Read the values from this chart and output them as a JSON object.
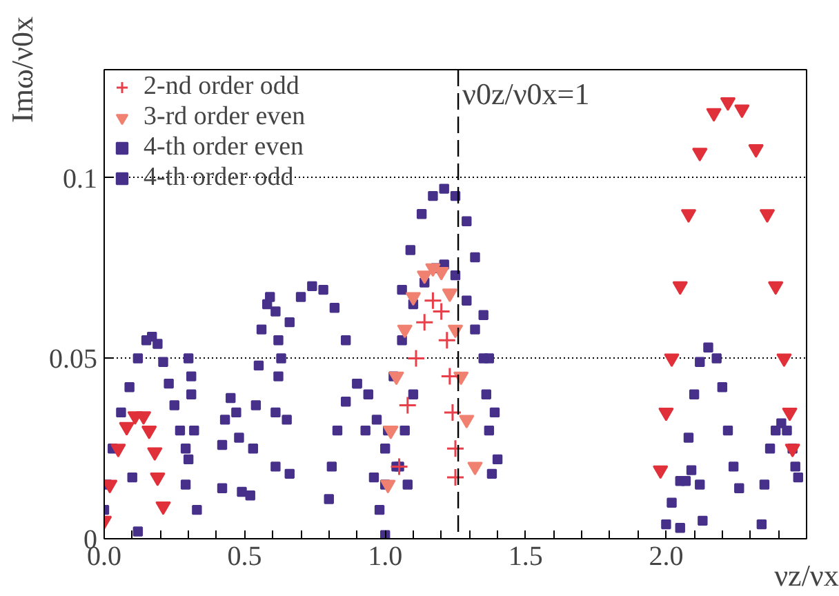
{
  "chart_data": {
    "type": "scatter",
    "xlabel": "νz/νx",
    "ylabel": "Imω/ν0x",
    "xlim": [
      0,
      2.5
    ],
    "ylim": [
      0,
      0.13
    ],
    "xticks": [
      {
        "value": 0,
        "label": "0.0"
      },
      {
        "value": 0.1,
        "label": null
      },
      {
        "value": 0.2,
        "label": null
      },
      {
        "value": 0.3,
        "label": null
      },
      {
        "value": 0.4,
        "label": null
      },
      {
        "value": 0.5,
        "label": "0.5"
      },
      {
        "value": 0.6,
        "label": null
      },
      {
        "value": 0.7,
        "label": null
      },
      {
        "value": 0.8,
        "label": null
      },
      {
        "value": 0.9,
        "label": null
      },
      {
        "value": 1,
        "label": "1.0"
      },
      {
        "value": 1.1,
        "label": null
      },
      {
        "value": 1.2,
        "label": null
      },
      {
        "value": 1.3,
        "label": null
      },
      {
        "value": 1.4,
        "label": null
      },
      {
        "value": 1.5,
        "label": "1.5"
      },
      {
        "value": 1.6,
        "label": null
      },
      {
        "value": 1.7,
        "label": null
      },
      {
        "value": 1.8,
        "label": null
      },
      {
        "value": 1.9,
        "label": null
      },
      {
        "value": 2,
        "label": "2.0"
      },
      {
        "value": 2.1,
        "label": null
      },
      {
        "value": 2.2,
        "label": null
      },
      {
        "value": 2.3,
        "label": null
      },
      {
        "value": 2.4,
        "label": null
      }
    ],
    "yticks": [
      0,
      0.05,
      0.1
    ],
    "grid": "y",
    "legend": "top left",
    "ref_lines": [
      {
        "axis": "x",
        "value": 1.26,
        "label": "ν0z/ν0x=1",
        "line_style": "dashed",
        "color": "#000000"
      }
    ],
    "series": [
      {
        "name": "2-nd order odd",
        "color": "#e8404a",
        "marker": "cross",
        "x": [
          1.05,
          1.08,
          1.11,
          1.14,
          1.17,
          1.2,
          1.22,
          1.23,
          1.24,
          1.25,
          1.25
        ],
        "values": [
          0.02,
          0.037,
          0.05,
          0.06,
          0.066,
          0.063,
          0.055,
          0.045,
          0.035,
          0.025,
          0.017
        ]
      },
      {
        "name": "3-rd order even",
        "color": "#f08070",
        "marker": "triangle",
        "x": [
          1.01,
          1.02,
          1.04,
          1.07,
          1.1,
          1.14,
          1.17,
          1.2,
          1.23,
          1.25,
          1.27,
          1.29,
          1.32
        ],
        "values": [
          0.015,
          0.03,
          0.045,
          0.058,
          0.067,
          0.073,
          0.075,
          0.074,
          0.068,
          0.058,
          0.045,
          0.033,
          0.02
        ]
      },
      {
        "color": "#e0303a",
        "marker": "triangle",
        "x": [
          0.0,
          0.02,
          0.05,
          0.08,
          0.11,
          0.14,
          0.16,
          0.18,
          0.19,
          0.21,
          1.98,
          2.0,
          2.02,
          2.05,
          2.08,
          2.12,
          2.17,
          2.22,
          2.27,
          2.32,
          2.36,
          2.39,
          2.42,
          2.44,
          2.45
        ],
        "values": [
          0.005,
          0.015,
          0.025,
          0.031,
          0.034,
          0.034,
          0.03,
          0.024,
          0.017,
          0.009,
          0.019,
          0.035,
          0.05,
          0.07,
          0.09,
          0.107,
          0.118,
          0.121,
          0.119,
          0.108,
          0.09,
          0.07,
          0.05,
          0.035,
          0.025
        ]
      },
      {
        "name": "4-th order even",
        "color": "#46308a",
        "marker": "square",
        "x": [
          0.0,
          0.01,
          0.03,
          0.06,
          0.09,
          0.12,
          0.15,
          0.17,
          0.19,
          0.21,
          0.23,
          0.25,
          0.27,
          0.29,
          0.29,
          0.12,
          0.1,
          0.52,
          0.53,
          0.54,
          0.55,
          0.56,
          0.58,
          0.59,
          0.61,
          0.62,
          0.62,
          0.61,
          0.61,
          0.65,
          0.66,
          0.63,
          0.66,
          0.7,
          0.74,
          0.78,
          0.82,
          0.86,
          0.9,
          0.93,
          0.96,
          0.98,
          1.0,
          1.0,
          1.01,
          1.03,
          1.06,
          1.1,
          1.14,
          1.18,
          1.21,
          1.25,
          1.29,
          1.32,
          1.35,
          1.36,
          1.37,
          1.38,
          1.05,
          1.07,
          1.1,
          2.05,
          2.07,
          2.08,
          2.1,
          2.12,
          2.15,
          2.18,
          2.2,
          2.22,
          2.24,
          2.26,
          2.34,
          2.35,
          2.37,
          2.39,
          2.41,
          2.43,
          2.45,
          2.46,
          2.47
        ],
        "values": [
          0.008,
          0.015,
          0.025,
          0.035,
          0.042,
          0.05,
          0.055,
          0.056,
          0.054,
          0.049,
          0.043,
          0.037,
          0.03,
          0.025,
          0.015,
          0.002,
          0.017,
          0.012,
          0.025,
          0.037,
          0.048,
          0.058,
          0.065,
          0.067,
          0.063,
          0.055,
          0.045,
          0.035,
          0.02,
          0.033,
          0.018,
          0.05,
          0.06,
          0.067,
          0.07,
          0.069,
          0.064,
          0.055,
          0.043,
          0.03,
          0.017,
          0.008,
          0.001,
          0.015,
          0.03,
          0.045,
          0.055,
          0.065,
          0.071,
          0.075,
          0.076,
          0.073,
          0.066,
          0.058,
          0.05,
          0.04,
          0.03,
          0.018,
          0.02,
          0.03,
          0.04,
          0.003,
          0.016,
          0.028,
          0.04,
          0.049,
          0.053,
          0.05,
          0.042,
          0.03,
          0.02,
          0.014,
          0.004,
          0.015,
          0.025,
          0.03,
          0.032,
          0.03,
          0.025,
          0.02,
          0.017
        ]
      },
      {
        "name": "4-th order odd",
        "color": "#46308a",
        "marker": "square",
        "x": [
          0.3,
          0.31,
          0.31,
          0.32,
          0.3,
          0.33,
          0.42,
          0.42,
          0.43,
          0.45,
          0.47,
          0.48,
          0.49,
          0.8,
          0.81,
          0.83,
          0.86,
          0.9,
          0.94,
          0.97,
          1.0,
          1.04,
          1.08,
          1.06,
          1.09,
          1.13,
          1.17,
          1.21,
          1.25,
          1.29,
          1.32,
          1.35,
          1.37,
          1.39,
          1.4,
          2.0,
          2.02,
          2.05,
          2.09,
          2.12,
          2.13
        ],
        "values": [
          0.05,
          0.045,
          0.04,
          0.03,
          0.022,
          0.008,
          0.014,
          0.026,
          0.033,
          0.039,
          0.035,
          0.028,
          0.013,
          0.011,
          0.02,
          0.03,
          0.038,
          0.043,
          0.04,
          0.033,
          0.025,
          0.02,
          0.015,
          0.069,
          0.08,
          0.09,
          0.095,
          0.097,
          0.095,
          0.088,
          0.078,
          0.062,
          0.05,
          0.035,
          0.022,
          0.004,
          0.01,
          0.016,
          0.019,
          0.015,
          0.005
        ]
      }
    ]
  }
}
